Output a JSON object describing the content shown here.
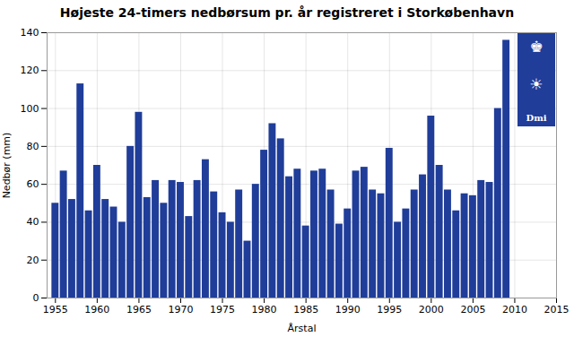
{
  "chart_data": {
    "type": "bar",
    "title": "Højeste 24-timers nedbørsum pr. år registreret i Storkøbenhavn",
    "xlabel": "Årstal",
    "ylabel": "Nedbør (mm)",
    "x": [
      1955,
      1956,
      1957,
      1958,
      1959,
      1960,
      1961,
      1962,
      1963,
      1964,
      1965,
      1966,
      1967,
      1968,
      1969,
      1970,
      1971,
      1972,
      1973,
      1974,
      1975,
      1976,
      1977,
      1978,
      1979,
      1980,
      1981,
      1982,
      1983,
      1984,
      1985,
      1986,
      1987,
      1988,
      1989,
      1990,
      1991,
      1992,
      1993,
      1994,
      1995,
      1996,
      1997,
      1998,
      1999,
      2000,
      2001,
      2002,
      2003,
      2004,
      2005,
      2006,
      2007,
      2008,
      2009,
      2010,
      2011
    ],
    "values": [
      50,
      67,
      52,
      113,
      46,
      70,
      52,
      48,
      40,
      80,
      98,
      53,
      62,
      50,
      62,
      61,
      43,
      62,
      73,
      56,
      45,
      40,
      57,
      30,
      60,
      78,
      92,
      84,
      64,
      68,
      38,
      67,
      68,
      57,
      39,
      47,
      67,
      69,
      57,
      55,
      79,
      40,
      47,
      57,
      65,
      96,
      70,
      57,
      46,
      55,
      54,
      62,
      61,
      100,
      136,
      0,
      0
    ],
    "color": "#1f3d99",
    "xlim": [
      1954,
      2015
    ],
    "ylim": [
      0,
      140
    ],
    "xticks": [
      1955,
      1960,
      1965,
      1970,
      1975,
      1980,
      1985,
      1990,
      1995,
      2000,
      2005,
      2010,
      2015
    ],
    "yticks": [
      0,
      20,
      40,
      60,
      80,
      100,
      120,
      140
    ],
    "grid": true,
    "annotations": [
      "♚",
      "☀",
      "Dmi"
    ]
  }
}
